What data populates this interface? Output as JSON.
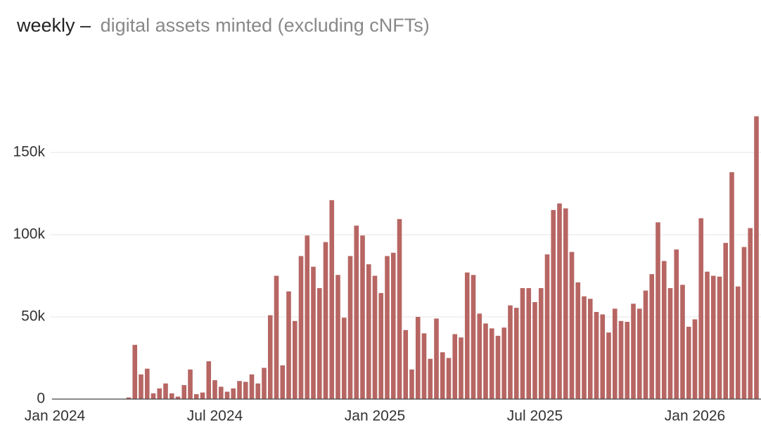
{
  "chart_data": {
    "type": "bar",
    "title": "weekly –",
    "subtitle": "digital assets minted (excluding cNFTs)",
    "color": "#b76663",
    "grid": true,
    "ylim": [
      0,
      190000
    ],
    "yticks": [
      0,
      {
        "value": 50000,
        "label": "50k"
      },
      {
        "value": 100000,
        "label": "100k"
      },
      {
        "value": 150000,
        "label": "150k"
      }
    ],
    "categories": [
      "Jan 2024",
      null,
      null,
      null,
      null,
      null,
      null,
      null,
      null,
      null,
      null,
      null,
      null,
      null,
      null,
      null,
      null,
      null,
      null,
      null,
      null,
      null,
      null,
      null,
      null,
      null,
      "Jul 2024",
      null,
      null,
      null,
      null,
      null,
      null,
      null,
      null,
      null,
      null,
      null,
      null,
      null,
      null,
      null,
      null,
      null,
      null,
      null,
      null,
      null,
      null,
      null,
      null,
      null,
      "Jan 2025",
      null,
      null,
      null,
      null,
      null,
      null,
      null,
      null,
      null,
      null,
      null,
      null,
      null,
      null,
      null,
      null,
      null,
      null,
      null,
      null,
      null,
      null,
      null,
      null,
      null,
      "Jul 2025",
      null,
      null,
      null,
      null,
      null,
      null,
      null,
      null,
      null,
      null,
      null,
      null,
      null,
      null,
      null,
      null,
      null,
      null,
      null,
      null,
      null,
      null,
      null,
      null,
      null,
      "Jan 2026",
      null,
      null,
      null,
      null,
      null,
      null,
      null,
      null,
      null,
      null
    ],
    "values": [
      0,
      0,
      0,
      0,
      0,
      0,
      0,
      0,
      0,
      0,
      0,
      0,
      1000,
      33000,
      15000,
      18500,
      3500,
      6500,
      9500,
      3500,
      1500,
      8500,
      18000,
      3000,
      4000,
      23000,
      11500,
      7500,
      4500,
      6500,
      11000,
      10500,
      15000,
      9500,
      19000,
      51000,
      75000,
      20500,
      65500,
      47500,
      87000,
      99500,
      80500,
      67500,
      95500,
      121000,
      75500,
      49500,
      87000,
      105500,
      99500,
      82000,
      75000,
      64500,
      87000,
      89000,
      109500,
      42000,
      18000,
      50000,
      40000,
      24500,
      49000,
      28500,
      25000,
      39500,
      37500,
      77000,
      75500,
      52000,
      46000,
      43000,
      38500,
      43500,
      57000,
      55500,
      67500,
      67500,
      59000,
      67500,
      88000,
      115000,
      119000,
      116000,
      89500,
      71000,
      62500,
      61000,
      53000,
      51500,
      40500,
      55000,
      47500,
      47000,
      58000,
      55000,
      66000,
      76000,
      107500,
      84000,
      67500,
      91000,
      69500,
      44000,
      48500,
      110000,
      77500,
      75000,
      74500,
      95000,
      138000,
      68500,
      92500,
      104000,
      172000
    ]
  }
}
